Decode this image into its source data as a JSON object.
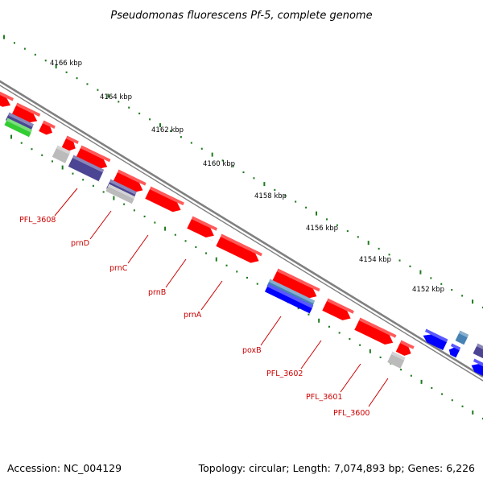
{
  "title": "Pseudomonas fluorescens Pf-5, complete genome",
  "footer": {
    "accession": "Accession: NC_004129",
    "info": "Topology: circular; Length: 7,074,893 bp; Genes: 6,226"
  },
  "colors": {
    "cds_forward": "#ff0000",
    "cds_reverse": "#0000ff",
    "feature_purple": "#4b4593",
    "feature_steelblue": "#4682b4",
    "feature_green": "#33cc33",
    "feature_gray": "#bbbbbb",
    "backbone": "#808080",
    "ticks": "#1e7a1e",
    "label": "#cc0000"
  },
  "scale_labels": [
    "4166 kbp",
    "4164 kbp",
    "4162 kbp",
    "4160 kbp",
    "4158 kbp",
    "4156 kbp",
    "4154 kbp",
    "4152 kbp"
  ],
  "gene_labels": [
    "PFL_3608",
    "prnD",
    "prnC",
    "prnB",
    "prnA",
    "poxB",
    "PFL_3602",
    "PFL_3601",
    "PFL_3600"
  ]
}
